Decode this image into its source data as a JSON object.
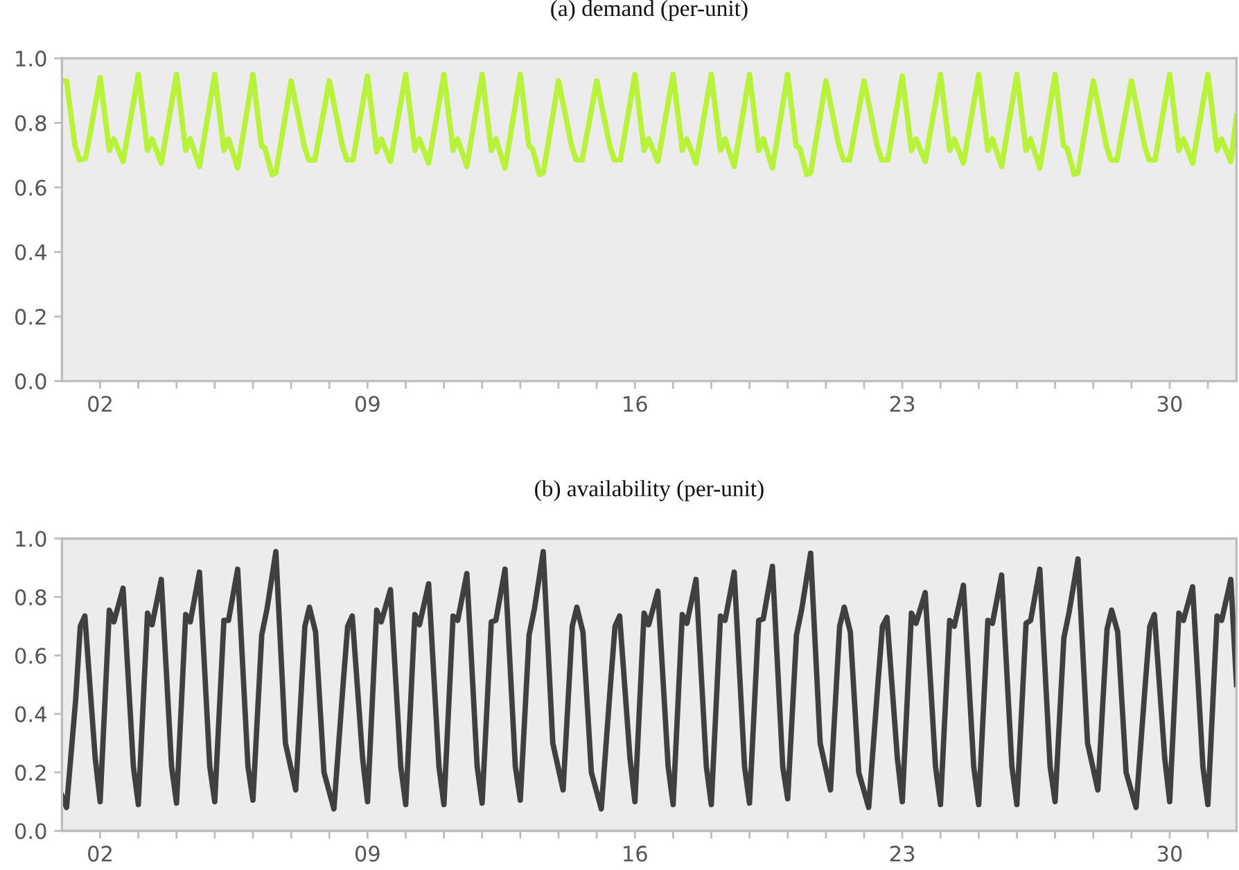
{
  "chart_data": [
    {
      "type": "line",
      "title": "(a) demand (per-unit)",
      "xlim": [
        1,
        31.75
      ],
      "ylim": [
        0,
        1
      ],
      "grid": false,
      "yticks": [
        {
          "value": 0,
          "label": "0.0"
        },
        {
          "value": 0.2,
          "label": "0.2"
        },
        {
          "value": 0.4,
          "label": "0.4"
        },
        {
          "value": 0.6,
          "label": "0.6"
        },
        {
          "value": 0.8,
          "label": "0.8"
        },
        {
          "value": 1,
          "label": "1.0"
        }
      ],
      "xticks": [
        {
          "value": 2,
          "label": "02"
        },
        {
          "value": 3,
          "label": null
        },
        {
          "value": 4,
          "label": null
        },
        {
          "value": 5,
          "label": null
        },
        {
          "value": 6,
          "label": null
        },
        {
          "value": 7,
          "label": null
        },
        {
          "value": 8,
          "label": null
        },
        {
          "value": 9,
          "label": "09"
        },
        {
          "value": 10,
          "label": null
        },
        {
          "value": 11,
          "label": null
        },
        {
          "value": 12,
          "label": null
        },
        {
          "value": 13,
          "label": null
        },
        {
          "value": 14,
          "label": null
        },
        {
          "value": 15,
          "label": null
        },
        {
          "value": 16,
          "label": "16"
        },
        {
          "value": 17,
          "label": null
        },
        {
          "value": 18,
          "label": null
        },
        {
          "value": 19,
          "label": null
        },
        {
          "value": 20,
          "label": null
        },
        {
          "value": 21,
          "label": null
        },
        {
          "value": 22,
          "label": null
        },
        {
          "value": 23,
          "label": "23"
        },
        {
          "value": 24,
          "label": null
        },
        {
          "value": 25,
          "label": null
        },
        {
          "value": 26,
          "label": null
        },
        {
          "value": 27,
          "label": null
        },
        {
          "value": 28,
          "label": null
        },
        {
          "value": 29,
          "label": null
        },
        {
          "value": 30,
          "label": "30"
        },
        {
          "value": 31,
          "label": null
        }
      ],
      "x": [
        1,
        1.12,
        1.34,
        1.46,
        1.62,
        2,
        2.24,
        2.36,
        2.6,
        3,
        3.24,
        3.36,
        3.6,
        4,
        4.24,
        4.36,
        4.6,
        5,
        5.24,
        5.36,
        5.6,
        6,
        6.22,
        6.32,
        6.5,
        6.6,
        7,
        7.34,
        7.46,
        7.62,
        8,
        8.34,
        8.46,
        8.62,
        9,
        9.24,
        9.36,
        9.6,
        10,
        10.24,
        10.36,
        10.6,
        11,
        11.24,
        11.36,
        11.6,
        12,
        12.24,
        12.36,
        12.6,
        13,
        13.22,
        13.32,
        13.5,
        13.6,
        14,
        14.34,
        14.46,
        14.62,
        15,
        15.34,
        15.46,
        15.62,
        16,
        16.24,
        16.36,
        16.6,
        17,
        17.24,
        17.36,
        17.6,
        18,
        18.24,
        18.36,
        18.6,
        19,
        19.24,
        19.36,
        19.6,
        20,
        20.22,
        20.32,
        20.5,
        20.6,
        21,
        21.34,
        21.46,
        21.62,
        22,
        22.34,
        22.46,
        22.62,
        23,
        23.24,
        23.36,
        23.6,
        24,
        24.24,
        24.36,
        24.6,
        25,
        25.24,
        25.36,
        25.6,
        26,
        26.24,
        26.36,
        26.6,
        27,
        27.22,
        27.32,
        27.5,
        27.6,
        28,
        28.34,
        28.46,
        28.62,
        29,
        29.34,
        29.46,
        29.62,
        30,
        30.24,
        30.36,
        30.6,
        31,
        31.24,
        31.36,
        31.6,
        31.75
      ],
      "series": [
        {
          "color": "#b9f23b",
          "values": [
            0.93,
            0.93,
            0.73,
            0.685,
            0.69,
            0.94,
            0.715,
            0.75,
            0.68,
            0.95,
            0.715,
            0.75,
            0.675,
            0.95,
            0.715,
            0.75,
            0.665,
            0.95,
            0.715,
            0.75,
            0.66,
            0.95,
            0.73,
            0.72,
            0.64,
            0.645,
            0.93,
            0.73,
            0.685,
            0.685,
            0.93,
            0.73,
            0.685,
            0.685,
            0.945,
            0.71,
            0.75,
            0.68,
            0.95,
            0.715,
            0.75,
            0.675,
            0.95,
            0.715,
            0.75,
            0.665,
            0.95,
            0.715,
            0.75,
            0.66,
            0.95,
            0.73,
            0.72,
            0.64,
            0.645,
            0.93,
            0.73,
            0.685,
            0.685,
            0.93,
            0.73,
            0.685,
            0.685,
            0.95,
            0.715,
            0.75,
            0.68,
            0.95,
            0.715,
            0.75,
            0.675,
            0.95,
            0.715,
            0.75,
            0.665,
            0.95,
            0.715,
            0.75,
            0.66,
            0.95,
            0.73,
            0.72,
            0.64,
            0.645,
            0.93,
            0.73,
            0.685,
            0.685,
            0.93,
            0.73,
            0.685,
            0.685,
            0.945,
            0.715,
            0.75,
            0.68,
            0.95,
            0.715,
            0.75,
            0.675,
            0.95,
            0.715,
            0.75,
            0.665,
            0.95,
            0.715,
            0.75,
            0.66,
            0.95,
            0.73,
            0.72,
            0.64,
            0.645,
            0.93,
            0.73,
            0.685,
            0.685,
            0.93,
            0.73,
            0.685,
            0.685,
            0.95,
            0.715,
            0.75,
            0.675,
            0.95,
            0.715,
            0.75,
            0.68,
            0.82
          ]
        }
      ]
    },
    {
      "type": "line",
      "title": "(b) availability (per-unit)",
      "xlim": [
        1,
        31.75
      ],
      "ylim": [
        0,
        1
      ],
      "grid": false,
      "yticks": [
        {
          "value": 0,
          "label": "0.0"
        },
        {
          "value": 0.2,
          "label": "0.2"
        },
        {
          "value": 0.4,
          "label": "0.4"
        },
        {
          "value": 0.6,
          "label": "0.6"
        },
        {
          "value": 0.8,
          "label": "0.8"
        },
        {
          "value": 1,
          "label": "1.0"
        }
      ],
      "xticks": [
        {
          "value": 2,
          "label": "02"
        },
        {
          "value": 3,
          "label": null
        },
        {
          "value": 4,
          "label": null
        },
        {
          "value": 5,
          "label": null
        },
        {
          "value": 6,
          "label": null
        },
        {
          "value": 7,
          "label": null
        },
        {
          "value": 8,
          "label": null
        },
        {
          "value": 9,
          "label": "09"
        },
        {
          "value": 10,
          "label": null
        },
        {
          "value": 11,
          "label": null
        },
        {
          "value": 12,
          "label": null
        },
        {
          "value": 13,
          "label": null
        },
        {
          "value": 14,
          "label": null
        },
        {
          "value": 15,
          "label": null
        },
        {
          "value": 16,
          "label": "16"
        },
        {
          "value": 17,
          "label": null
        },
        {
          "value": 18,
          "label": null
        },
        {
          "value": 19,
          "label": null
        },
        {
          "value": 20,
          "label": null
        },
        {
          "value": 21,
          "label": null
        },
        {
          "value": 22,
          "label": null
        },
        {
          "value": 23,
          "label": "23"
        },
        {
          "value": 24,
          "label": null
        },
        {
          "value": 25,
          "label": null
        },
        {
          "value": 26,
          "label": null
        },
        {
          "value": 27,
          "label": null
        },
        {
          "value": 28,
          "label": null
        },
        {
          "value": 29,
          "label": null
        },
        {
          "value": 30,
          "label": "30"
        },
        {
          "value": 31,
          "label": null
        }
      ],
      "x": [
        1,
        1.12,
        1.36,
        1.48,
        1.6,
        1.87,
        2,
        2.24,
        2.36,
        2.6,
        2.87,
        3,
        3.24,
        3.36,
        3.6,
        3.87,
        4,
        4.24,
        4.36,
        4.6,
        4.87,
        5,
        5.24,
        5.36,
        5.6,
        5.87,
        6,
        6.23,
        6.37,
        6.6,
        6.85,
        7.12,
        7.36,
        7.48,
        7.64,
        7.86,
        8.12,
        8.36,
        8.48,
        8.6,
        8.87,
        9,
        9.24,
        9.36,
        9.6,
        9.87,
        10,
        10.24,
        10.36,
        10.6,
        10.87,
        11,
        11.24,
        11.36,
        11.6,
        11.87,
        12,
        12.24,
        12.36,
        12.6,
        12.87,
        13,
        13.23,
        13.37,
        13.6,
        13.85,
        14.12,
        14.36,
        14.48,
        14.64,
        14.86,
        15.12,
        15.36,
        15.48,
        15.6,
        15.87,
        16,
        16.24,
        16.36,
        16.6,
        16.87,
        17,
        17.24,
        17.36,
        17.6,
        17.87,
        18,
        18.24,
        18.36,
        18.6,
        18.87,
        19,
        19.24,
        19.36,
        19.6,
        19.87,
        20,
        20.23,
        20.37,
        20.6,
        20.85,
        21.12,
        21.36,
        21.48,
        21.64,
        21.86,
        22.12,
        22.36,
        22.48,
        22.6,
        22.87,
        23,
        23.24,
        23.36,
        23.6,
        23.87,
        24,
        24.24,
        24.36,
        24.6,
        24.87,
        25,
        25.24,
        25.36,
        25.6,
        25.87,
        26,
        26.24,
        26.36,
        26.6,
        26.87,
        27,
        27.23,
        27.37,
        27.6,
        27.85,
        28.12,
        28.36,
        28.48,
        28.64,
        28.86,
        29.12,
        29.36,
        29.48,
        29.6,
        29.87,
        30,
        30.24,
        30.36,
        30.6,
        30.87,
        31,
        31.24,
        31.36,
        31.6,
        31.75
      ],
      "series": [
        {
          "color": "#404040",
          "values": [
            0.12,
            0.08,
            0.45,
            0.7,
            0.735,
            0.25,
            0.1,
            0.755,
            0.715,
            0.83,
            0.22,
            0.09,
            0.745,
            0.705,
            0.86,
            0.22,
            0.095,
            0.74,
            0.715,
            0.885,
            0.22,
            0.1,
            0.72,
            0.72,
            0.895,
            0.22,
            0.105,
            0.67,
            0.76,
            0.955,
            0.3,
            0.14,
            0.7,
            0.765,
            0.68,
            0.2,
            0.075,
            0.5,
            0.7,
            0.735,
            0.25,
            0.1,
            0.755,
            0.715,
            0.825,
            0.22,
            0.09,
            0.74,
            0.705,
            0.845,
            0.22,
            0.09,
            0.735,
            0.72,
            0.88,
            0.22,
            0.095,
            0.715,
            0.72,
            0.895,
            0.22,
            0.105,
            0.67,
            0.76,
            0.955,
            0.3,
            0.14,
            0.7,
            0.765,
            0.68,
            0.2,
            0.075,
            0.5,
            0.7,
            0.735,
            0.25,
            0.1,
            0.745,
            0.705,
            0.82,
            0.22,
            0.09,
            0.74,
            0.71,
            0.86,
            0.22,
            0.09,
            0.735,
            0.72,
            0.885,
            0.22,
            0.095,
            0.72,
            0.725,
            0.905,
            0.22,
            0.11,
            0.67,
            0.76,
            0.95,
            0.3,
            0.14,
            0.7,
            0.765,
            0.68,
            0.2,
            0.08,
            0.5,
            0.7,
            0.73,
            0.25,
            0.1,
            0.745,
            0.71,
            0.815,
            0.22,
            0.09,
            0.72,
            0.7,
            0.84,
            0.22,
            0.09,
            0.72,
            0.71,
            0.875,
            0.22,
            0.09,
            0.71,
            0.72,
            0.895,
            0.22,
            0.1,
            0.66,
            0.75,
            0.93,
            0.3,
            0.14,
            0.69,
            0.755,
            0.68,
            0.2,
            0.08,
            0.5,
            0.7,
            0.74,
            0.25,
            0.1,
            0.745,
            0.72,
            0.835,
            0.22,
            0.09,
            0.735,
            0.72,
            0.86,
            0.5
          ]
        }
      ]
    }
  ]
}
